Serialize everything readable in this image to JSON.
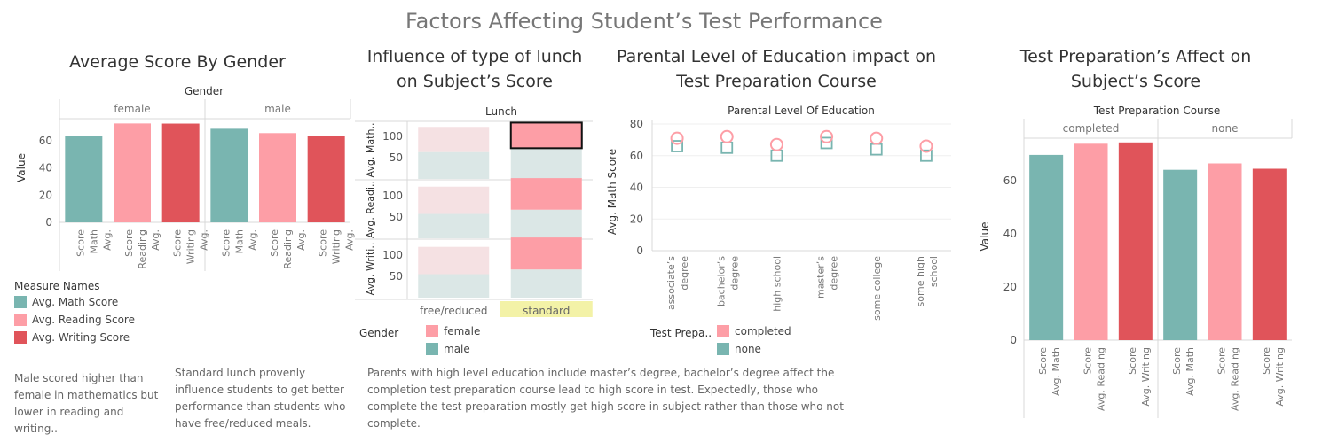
{
  "main_title": "Factors Affecting Student’s Test Performance",
  "colors": {
    "math": "#79b5b0",
    "reading": "#fd9ea6",
    "writing": "#e0545a",
    "light_math": "#dbe7e6",
    "light_reading": "#f5e1e3",
    "axis": "#d8d8d8",
    "grid": "#efefef",
    "highlight": "#f3f2a7"
  },
  "measure_legend": {
    "title": "Measure Names",
    "items": [
      "Avg. Math Score",
      "Avg. Reading Score",
      "Avg. Writing Score"
    ]
  },
  "gender_legend": {
    "title": "Gender",
    "items": [
      "female",
      "male"
    ]
  },
  "prep_legend": {
    "title": "Test Prepa..",
    "items": [
      "completed",
      "none"
    ]
  },
  "notes": {
    "gender": "Male scored higher than female in mathematics but lower in reading and writing..",
    "lunch": "Standard lunch provenly influence students to get better performance than students who have free/reduced meals.",
    "parental": "Parents with high level education include master’s degree, bachelor’s degree affect the completion test preparation course lead to high score in test. Expectedly, those who complete the test preparation mostly get high score in subject rather than those who not complete."
  },
  "chart_data": [
    {
      "type": "bar",
      "title": "Average Score By Gender",
      "header": "Gender",
      "ylabel": "Value",
      "ylim": [
        0,
        80
      ],
      "yticks": [
        0,
        20,
        40,
        60
      ],
      "panels": [
        "female",
        "male"
      ],
      "categories": [
        "Avg. Math Score",
        "Avg. Reading Score",
        "Avg. Writing Score"
      ],
      "values": [
        [
          63.6,
          72.6,
          72.5
        ],
        [
          68.7,
          65.5,
          63.3
        ]
      ]
    },
    {
      "type": "bar",
      "title": "Influence of type of lunch on Subject’s Score",
      "header": "Lunch",
      "categories": [
        "free/reduced",
        "standard"
      ],
      "highlighted": "standard",
      "row_labels": [
        "Avg. Math..",
        "Avg. Readi..",
        "Avg. Writi.."
      ],
      "ylim": [
        0,
        135
      ],
      "yticks": [
        50,
        100
      ],
      "series": [
        {
          "name": "female",
          "rows": [
            [
              59,
              60
            ],
            [
              64,
              74
            ],
            [
              64,
              75
            ]
          ]
        },
        {
          "name": "male",
          "rows": [
            [
              63,
              72
            ],
            [
              57,
              67
            ],
            [
              55,
              66
            ]
          ]
        }
      ]
    },
    {
      "type": "scatter",
      "title": "Parental Level of Education impact on Test Preparation Course",
      "header": "Parental Level Of Education",
      "ylabel": "Avg. Math Score",
      "ylim": [
        0,
        80
      ],
      "yticks": [
        0,
        20,
        40,
        60,
        80
      ],
      "categories": [
        "associate’s degree",
        "bachelor’s degree",
        "high school",
        "master’s degree",
        "some college",
        "some high school"
      ],
      "series": [
        {
          "name": "completed",
          "values": [
            71,
            72,
            67,
            72,
            71,
            66
          ]
        },
        {
          "name": "none",
          "values": [
            66,
            65,
            60,
            68,
            64,
            60
          ]
        }
      ]
    },
    {
      "type": "bar",
      "title": "Test Preparation’s Affect on Subject’s Score",
      "header": "Test Preparation Course",
      "ylabel": "Value",
      "ylim": [
        0,
        78
      ],
      "yticks": [
        0,
        20,
        40,
        60
      ],
      "panels": [
        "completed",
        "none"
      ],
      "categories": [
        "Avg. Math Score",
        "Avg. Reading Score",
        "Avg. Writing Score"
      ],
      "values": [
        [
          69.7,
          73.9,
          74.4
        ],
        [
          64.1,
          66.5,
          64.5
        ]
      ]
    }
  ]
}
